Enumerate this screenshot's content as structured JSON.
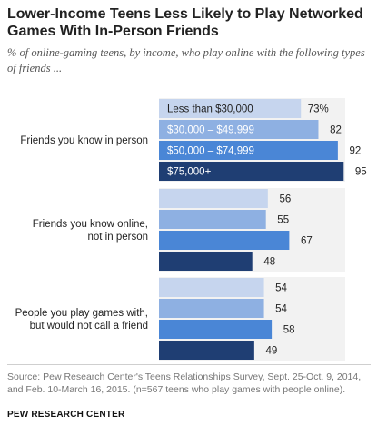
{
  "title": "Lower-Income Teens Less Likely to Play Networked Games With In-Person Friends",
  "subtitle": "% of online-gaming teens, by income, who play online with the following types of friends ...",
  "chart_data": {
    "type": "bar",
    "orientation": "horizontal",
    "categories": [
      "Friends you know in person",
      "Friends you know online, not in person",
      "People you play games with, but would not call a friend"
    ],
    "series": [
      {
        "name": "Less than $30,000",
        "values": [
          73,
          56,
          54
        ],
        "color": "#c6d5ee"
      },
      {
        "name": "$30,000 – $49,999",
        "values": [
          82,
          55,
          54
        ],
        "color": "#8eb0e2"
      },
      {
        "name": "$50,000 – $74,999",
        "values": [
          92,
          67,
          58
        ],
        "color": "#4a86d6"
      },
      {
        "name": "$75,000+",
        "values": [
          95,
          48,
          49
        ],
        "color": "#1f3e73"
      }
    ],
    "first_value_suffix": "%",
    "legend": "inside-bars",
    "xlim": [
      0,
      100
    ],
    "grid": false
  },
  "source": "Source: Pew Research Center's Teens Relationships Survey, Sept. 25-Oct. 9, 2014, and Feb. 10-March 16, 2015. (n=567 teens who play games with people online).",
  "brand": "PEW RESEARCH CENTER"
}
